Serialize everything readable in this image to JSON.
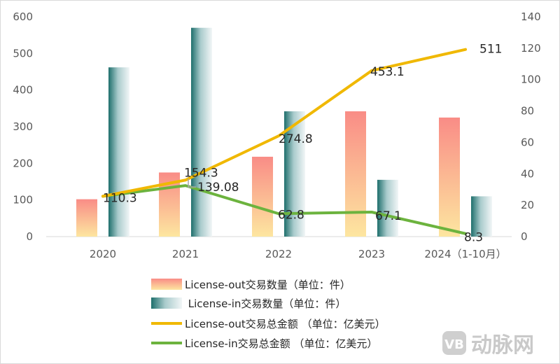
{
  "chart_data": {
    "type": "bar",
    "categories": [
      "2020",
      "2021",
      "2022",
      "2023",
      "2024（1-10月）"
    ],
    "left_axis": {
      "ylim": [
        0,
        600
      ],
      "ticks": [
        0,
        100,
        200,
        300,
        400,
        500,
        600
      ]
    },
    "right_axis": {
      "ylim": [
        0,
        140
      ],
      "ticks": [
        0,
        20,
        40,
        60,
        80,
        100,
        120,
        140
      ]
    },
    "bar_series": [
      {
        "name": "License-out交易数量（单位：件）",
        "axis": "left",
        "values": [
          102,
          175,
          218,
          342,
          325
        ],
        "color_top": "#f98c86",
        "color_bottom": "#fde6a0"
      },
      {
        "name": " License-in交易数量（单位：件）",
        "axis": "left",
        "values": [
          462,
          570,
          342,
          155,
          110
        ],
        "color_left": "#1e6f6c",
        "color_right": "#f2f6f7"
      }
    ],
    "line_series": [
      {
        "name": "License-out交易总金额 （单位：亿美元）",
        "axis": "right",
        "values": [
          25.7,
          36.0,
          64.1,
          105.7,
          119.2
        ],
        "labels": [
          "110.3",
          "154.3",
          "274.8",
          "453.1",
          "511"
        ],
        "color": "#f0b800"
      },
      {
        "name": "License-in交易总金额 （单位：亿美元）",
        "axis": "right",
        "values": [
          25.7,
          32.5,
          14.6,
          15.6,
          1.9
        ],
        "labels": [
          "",
          "139.08",
          "62.8",
          "67.1",
          "8.3"
        ],
        "color": "#6cb33e"
      }
    ],
    "legend_position": "bottom",
    "grid": false
  },
  "watermark": {
    "text": "动脉网",
    "logo_text": "VB"
  }
}
